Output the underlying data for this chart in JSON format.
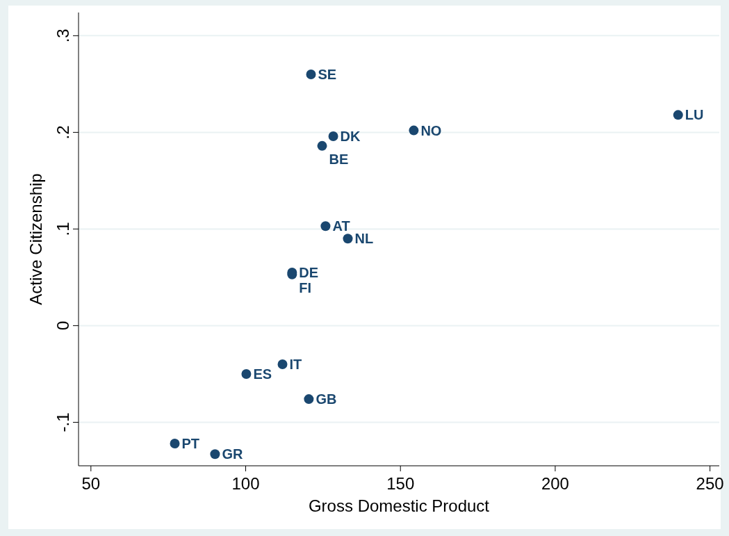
{
  "chart_data": {
    "type": "scatter",
    "xlabel": "Gross Domestic Product",
    "ylabel": "Active Citizenship",
    "series": [
      {
        "color": "#1a476f",
        "x": [
          121.1,
          128.3,
          124.7,
          154.3,
          239.7,
          125.8,
          133.0,
          115.0,
          115.0,
          111.9,
          100.2,
          120.4,
          77.1,
          90.1
        ],
        "values": [
          0.26,
          0.196,
          0.186,
          0.202,
          0.218,
          0.103,
          0.09,
          0.055,
          0.053,
          -0.04,
          -0.05,
          -0.076,
          -0.122,
          -0.133
        ]
      }
    ],
    "annotations": [
      {
        "text": "SE",
        "x": 121.1,
        "y": 0.26
      },
      {
        "text": "DK",
        "x": 128.3,
        "y": 0.196
      },
      {
        "text": "BE",
        "x": 124.7,
        "y": 0.186
      },
      {
        "text": "NO",
        "x": 154.3,
        "y": 0.202
      },
      {
        "text": "LU",
        "x": 239.7,
        "y": 0.218
      },
      {
        "text": "AT",
        "x": 125.8,
        "y": 0.103
      },
      {
        "text": "NL",
        "x": 133.0,
        "y": 0.09
      },
      {
        "text": "DE",
        "x": 115.0,
        "y": 0.055
      },
      {
        "text": "FI",
        "x": 115.0,
        "y": 0.053
      },
      {
        "text": "IT",
        "x": 111.9,
        "y": -0.04
      },
      {
        "text": "ES",
        "x": 100.2,
        "y": -0.05
      },
      {
        "text": "GB",
        "x": 120.4,
        "y": -0.076
      },
      {
        "text": "PT",
        "x": 77.1,
        "y": -0.122
      },
      {
        "text": "GR",
        "x": 90.1,
        "y": -0.133
      }
    ],
    "xlim": [
      46,
      253
    ],
    "ylim": [
      -0.145,
      0.324
    ],
    "xticks": [
      50,
      100,
      150,
      200,
      250
    ],
    "yticks": [
      {
        "value": -0.1,
        "label": "-.1"
      },
      {
        "value": 0,
        "label": "0"
      },
      {
        "value": 0.1,
        "label": ".1"
      },
      {
        "value": 0.2,
        "label": ".2"
      },
      {
        "value": 0.3,
        "label": ".3"
      }
    ],
    "grid": "y",
    "marker": "circle"
  }
}
